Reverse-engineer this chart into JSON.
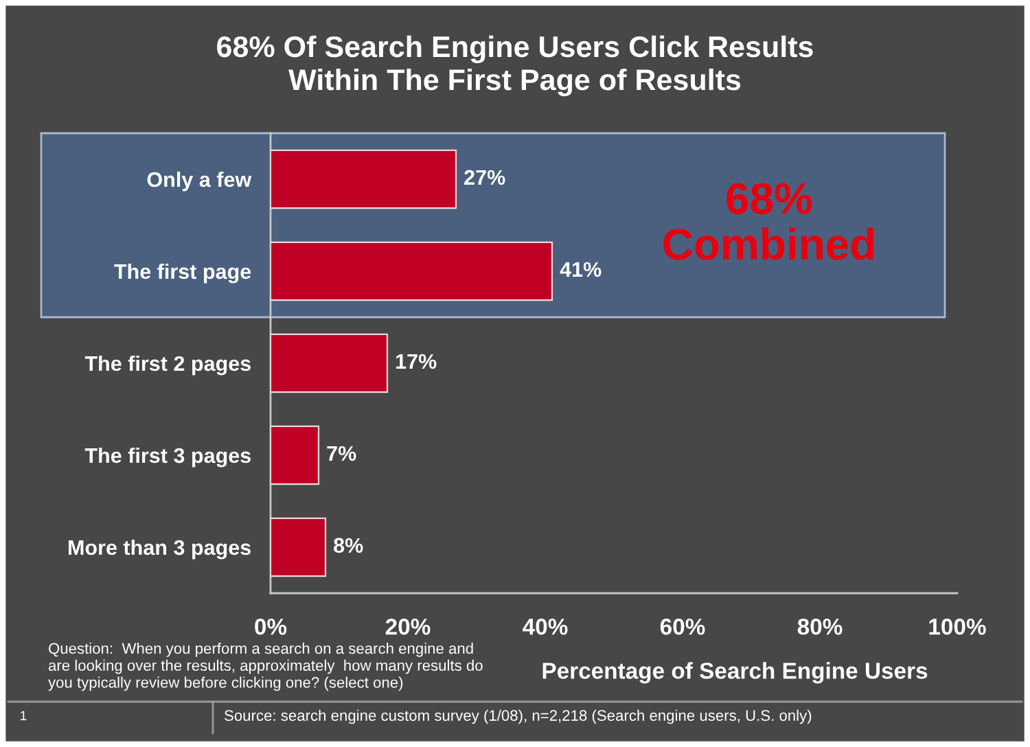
{
  "chart_data": {
    "type": "bar",
    "orientation": "horizontal",
    "title": "68% Of Search Engine Users Click Results\nWithin The First Page of Results",
    "xlabel": "Percentage of Search Engine Users",
    "categories": [
      "Only a few",
      "The first page",
      "The first 2 pages",
      "The first 3 pages",
      "More than 3 pages"
    ],
    "values": [
      27,
      41,
      17,
      7,
      8
    ],
    "value_labels": [
      "27%",
      "41%",
      "17%",
      "7%",
      "8%"
    ],
    "color": "#c00024",
    "xlim": [
      0,
      100
    ],
    "xticks": [
      {
        "value": 0,
        "label": "0%"
      },
      {
        "value": 20,
        "label": "20%"
      },
      {
        "value": 40,
        "label": "40%"
      },
      {
        "value": 60,
        "label": "60%"
      },
      {
        "value": 80,
        "label": "80%"
      },
      {
        "value": 100,
        "label": "100%"
      }
    ],
    "grid": false,
    "bands": [
      {
        "axis": "y",
        "from": "Only a few",
        "to": "The first page",
        "color": "#4b5f7f"
      }
    ],
    "annotations": [
      "68%\nCombined",
      "Question:  When you perform a search on a search engine and\nare looking over the results, approximately  how many results do\nyou typically review before clicking one? (select one)",
      "1",
      "Source: search engine custom survey (1/08), n=2,218 (Search engine users, U.S. only)"
    ]
  }
}
